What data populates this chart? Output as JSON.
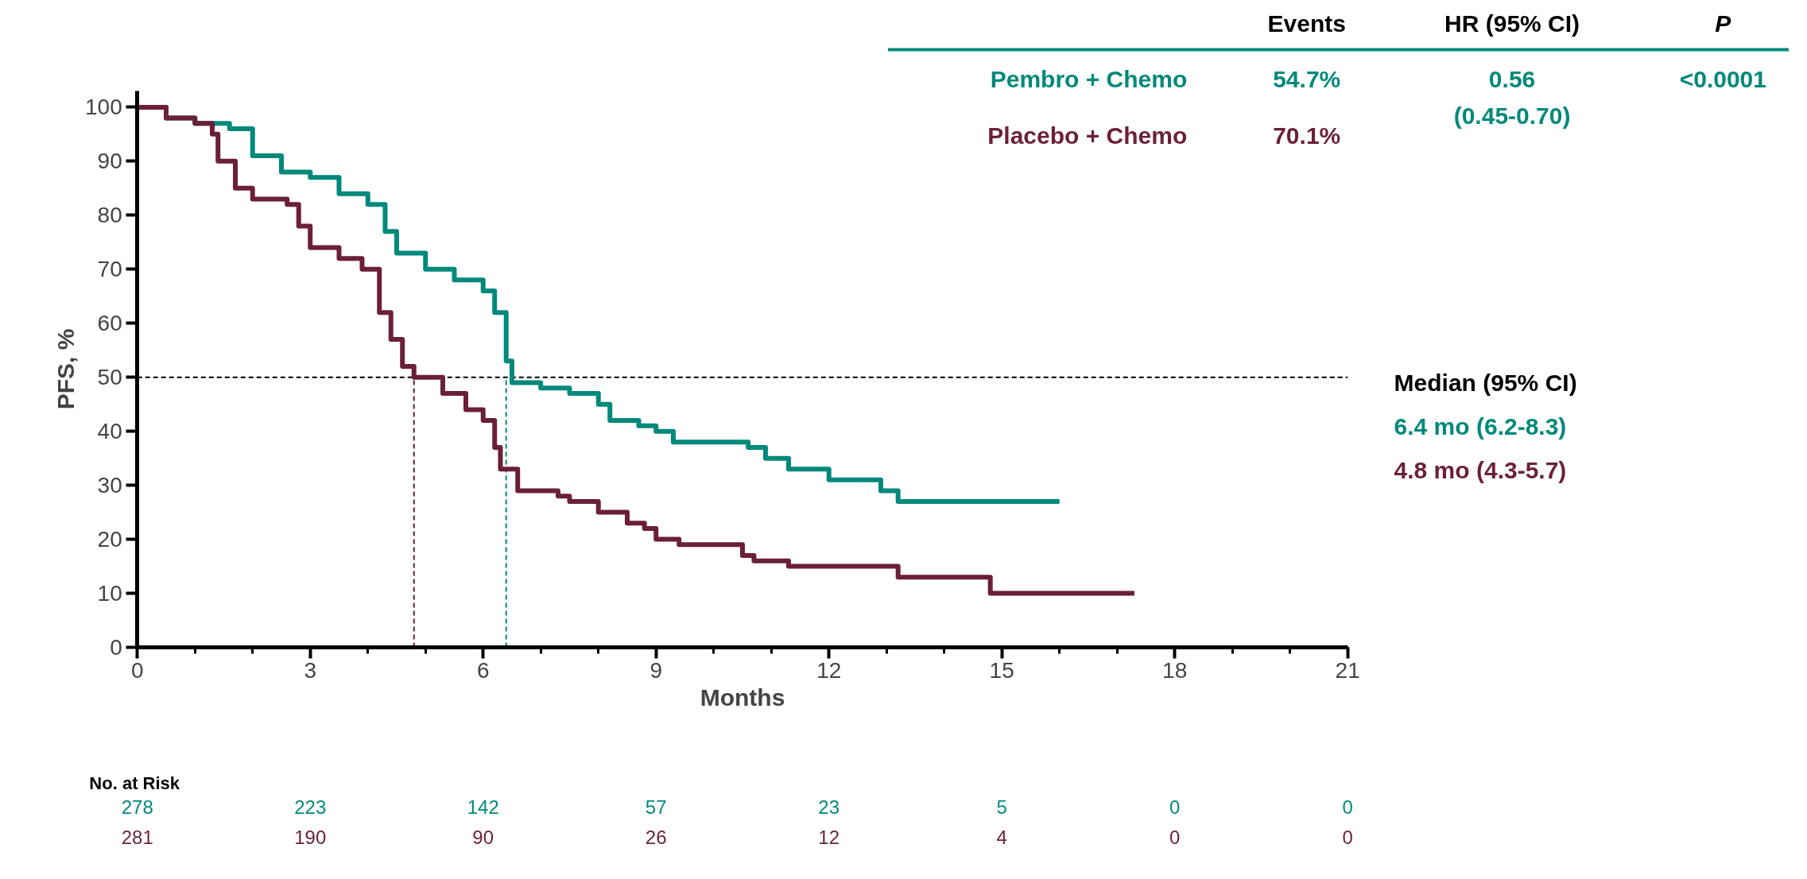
{
  "chart_data": {
    "type": "step",
    "xlabel": "Months",
    "ylabel": "PFS, %",
    "xlim": [
      0,
      21
    ],
    "ylim": [
      0,
      103
    ],
    "xticks": [
      0,
      3,
      6,
      9,
      12,
      15,
      18,
      21
    ],
    "yticks": [
      0,
      10,
      20,
      30,
      40,
      50,
      60,
      70,
      80,
      90,
      100
    ],
    "legend": "top right",
    "line_style": "solid",
    "marker": "none",
    "series": [
      {
        "name": "Pembro + Chemo",
        "color": "#00897b",
        "x": [
          0,
          0.5,
          1,
          1.6,
          2,
          2.5,
          3,
          3.5,
          4,
          4.3,
          4.5,
          5,
          5.5,
          6,
          6.2,
          6.4,
          6.5,
          7,
          7.5,
          8,
          8.2,
          8.7,
          9,
          9.3,
          10,
          10.6,
          10.9,
          11.3,
          12,
          12.9,
          13.2,
          16
        ],
        "values": [
          100,
          98,
          97,
          96,
          91,
          88,
          87,
          84,
          82,
          77,
          73,
          70,
          68,
          66,
          62,
          53,
          49,
          48,
          47,
          45,
          42,
          41,
          40,
          38,
          38,
          37,
          35,
          33,
          31,
          29,
          27,
          27
        ]
      },
      {
        "name": "Placebo + Chemo",
        "color": "#6b1f3a",
        "x": [
          0,
          0.5,
          1,
          1.3,
          1.4,
          1.7,
          2,
          2.6,
          2.8,
          3,
          3.5,
          3.9,
          4.2,
          4.4,
          4.6,
          4.8,
          5.3,
          5.7,
          6,
          6.2,
          6.3,
          6.6,
          7.3,
          7.5,
          8,
          8.5,
          8.8,
          9,
          9.4,
          10.5,
          10.7,
          11.3,
          13.2,
          14.8,
          17.3
        ],
        "values": [
          100,
          98,
          97,
          95,
          90,
          85,
          83,
          82,
          78,
          74,
          72,
          70,
          62,
          57,
          52,
          50,
          47,
          44,
          42,
          37,
          33,
          29,
          28,
          27,
          25,
          23,
          22,
          20,
          19,
          17,
          16,
          15,
          13,
          10,
          10
        ]
      }
    ],
    "ref_lines": [
      {
        "axis": "y",
        "value": 50,
        "color": "#000000",
        "line_style": "dashed"
      },
      {
        "axis": "x",
        "value": 4.8,
        "color": "#6b1f3a",
        "line_style": "dashed"
      },
      {
        "axis": "x",
        "value": 6.4,
        "color": "#00897b",
        "line_style": "dashed"
      }
    ],
    "annotations": [
      "Events",
      "HR (95% CI)",
      "P",
      "54.7%",
      "70.1%",
      "0.56\n(0.45-0.70)",
      "<0.0001",
      "Median (95% CI)",
      "6.4 mo (6.2-8.3)",
      "4.8 mo (4.3-5.7)",
      "No. at Risk",
      "278 223 142 57 23 5 0 0",
      "281 190 90 26 12 4 0 0"
    ]
  }
}
